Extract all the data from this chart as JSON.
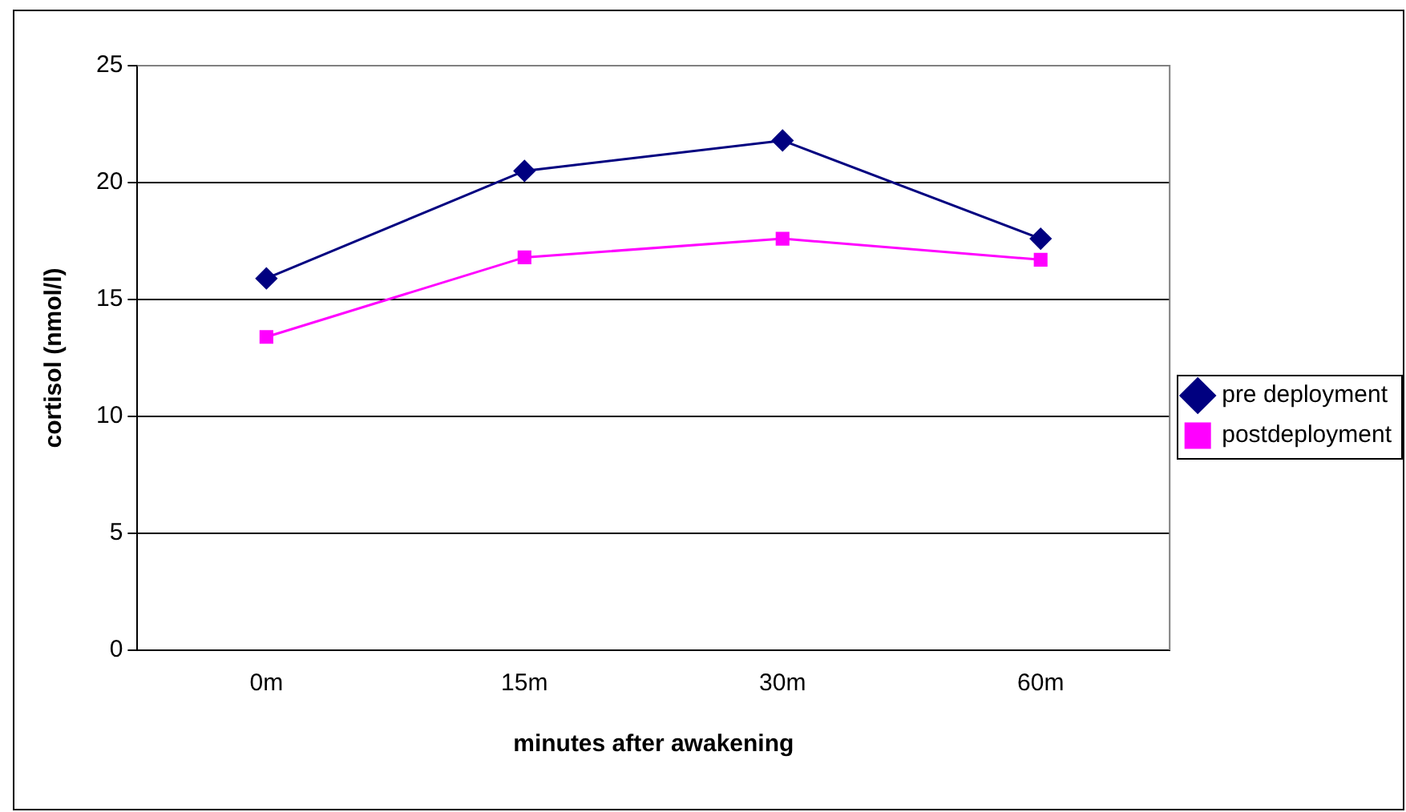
{
  "chart_data": {
    "type": "line",
    "xlabel": "minutes after awakening",
    "ylabel": "cortisol (nmol/l)",
    "categories": [
      "0m",
      "15m",
      "30m",
      "60m"
    ],
    "series": [
      {
        "name": "pre deployment",
        "color": "#000080",
        "marker": "diamond",
        "values": [
          15.9,
          20.5,
          21.8,
          17.6
        ]
      },
      {
        "name": "postdeployment",
        "color": "#ff00ff",
        "marker": "square",
        "values": [
          13.4,
          16.8,
          17.6,
          16.7
        ]
      }
    ],
    "ylim": [
      0,
      25
    ],
    "yticks": [
      0,
      5,
      10,
      15,
      20,
      25
    ],
    "grid": "y",
    "legend": "right"
  }
}
